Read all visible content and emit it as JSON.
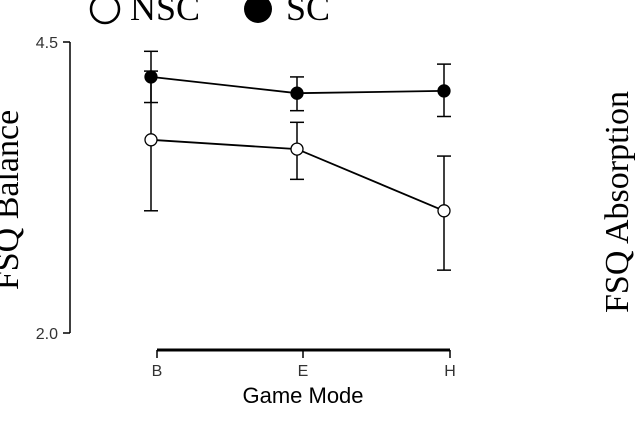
{
  "chart_data": {
    "type": "line",
    "categories": [
      "B",
      "E",
      "H"
    ],
    "series": [
      {
        "name": "NSC",
        "marker": "open-circle",
        "values": [
          3.66,
          3.58,
          3.05
        ],
        "error_low": [
          3.05,
          3.32,
          2.54
        ],
        "error_high": [
          4.25,
          3.81,
          3.52
        ]
      },
      {
        "name": "SC",
        "marker": "filled-circle",
        "values": [
          4.2,
          4.06,
          4.08
        ],
        "error_low": [
          3.98,
          3.91,
          3.86
        ],
        "error_high": [
          4.42,
          4.2,
          4.31
        ]
      }
    ],
    "ylim": [
      2.0,
      4.5
    ],
    "yticks": [
      "2.0",
      "4.5"
    ],
    "xlabel": "Game Mode",
    "ylabel": "FSQ Balance",
    "right_ylabel": "FSQ Absorption",
    "legend_position": "top-left",
    "grid": false,
    "colors": {
      "line": "#000000",
      "open_fill": "#ffffff",
      "filled": "#000000"
    }
  }
}
